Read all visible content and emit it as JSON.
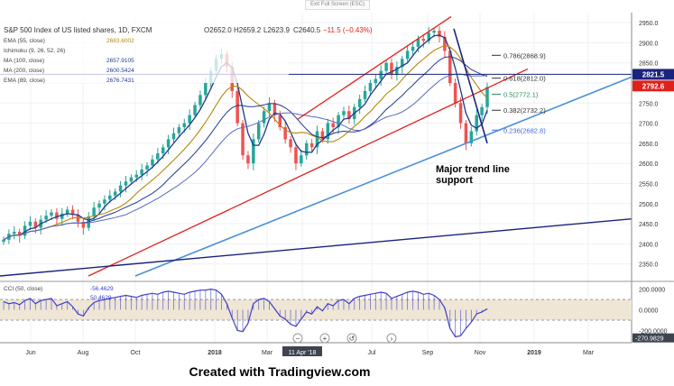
{
  "header": {
    "fullscreen_hint": "Exit Full Screen (ESC)",
    "symbol_title": "S&P 500 Index of US listed shares, 1D, FXCM",
    "ohlc": {
      "open": "O2652.0",
      "high": "H2659.2",
      "low": "L2623.9",
      "close": "C2640.5",
      "change": "−11.5 (−0.43%)"
    }
  },
  "indicators": [
    {
      "label": "EMA (55, close)",
      "value": "2683.6002",
      "color": "#b8860b"
    },
    {
      "label": "Ichimoku (9, 26, 52, 26)",
      "value": "",
      "color": "#aaaaaa"
    },
    {
      "label": "MA (100, close)",
      "value": "2657.9105",
      "color": "#1f3a93"
    },
    {
      "label": "MA (200, close)",
      "value": "2600.5424",
      "color": "#1f3a93"
    },
    {
      "label": "EMA (89, close)",
      "value": "2676.7431",
      "color": "#1f3a93"
    }
  ],
  "price_badges": {
    "level": "2821.5",
    "last": "2792.6"
  },
  "fib_labels": [
    {
      "text": "0.786(2868.9)",
      "y": 2868.9,
      "color": "#333333"
    },
    {
      "text": "0.618(2812.0)",
      "y": 2812.0,
      "color": "#333333"
    },
    {
      "text": "0.5(2772.1)",
      "y": 2772.1,
      "color": "#2e8b57"
    },
    {
      "text": "0.382(2732.2)",
      "y": 2732.2,
      "color": "#333333"
    },
    {
      "text": "0.236(2682.8)",
      "y": 2682.8,
      "color": "#4169e1"
    }
  ],
  "annotation": {
    "line1": "Major trend line",
    "line2": "support"
  },
  "cci_label": "CCI (50, close)",
  "cci_values": {
    "a": "-56.4629",
    "b": "50.4629"
  },
  "cci_axis": [
    "200.0000",
    "0.0000",
    "-200.0000",
    "-270.9829"
  ],
  "price_axis": [
    "2950.0",
    "2900.0",
    "2850.0",
    "2800.0",
    "2750.0",
    "2700.0",
    "2650.0",
    "2600.0",
    "2550.0",
    "2500.0",
    "2450.0",
    "2400.0",
    "2350.0"
  ],
  "time_axis": [
    "Jun",
    "Aug",
    "Oct",
    "2018",
    "Mar",
    "11 Apr '18",
    "Jul",
    "Sep",
    "Nov",
    "2019",
    "Mar"
  ],
  "footer": "Created with Tradingview.com",
  "colors": {
    "bull": "#26a69a",
    "bear": "#ef5350",
    "trend_blue": "#4a90d9",
    "channel_red": "#e0201b",
    "dark_blue": "#1a237e",
    "cci": "#3f3fc8"
  },
  "chart_data": {
    "type": "line",
    "title": "S&P 500 Index of US listed shares, 1D, FXCM",
    "ylim": [
      2320,
      2975
    ],
    "close": [
      2410,
      2425,
      2430,
      2420,
      2445,
      2455,
      2440,
      2460,
      2470,
      2478,
      2462,
      2475,
      2485,
      2472,
      2455,
      2440,
      2468,
      2490,
      2500,
      2510,
      2520,
      2530,
      2545,
      2555,
      2565,
      2572,
      2585,
      2595,
      2610,
      2625,
      2640,
      2660,
      2675,
      2690,
      2700,
      2720,
      2745,
      2770,
      2800,
      2830,
      2860,
      2872,
      2840,
      2780,
      2700,
      2620,
      2600,
      2660,
      2700,
      2730,
      2750,
      2720,
      2690,
      2660,
      2640,
      2600,
      2620,
      2650,
      2640,
      2680,
      2660,
      2700,
      2690,
      2720,
      2730,
      2710,
      2740,
      2760,
      2780,
      2800,
      2810,
      2830,
      2850,
      2820,
      2840,
      2860,
      2880,
      2890,
      2910,
      2905,
      2925,
      2930,
      2915,
      2880,
      2800,
      2750,
      2700,
      2650,
      2680,
      2720,
      2740,
      2790
    ],
    "cci": [
      80,
      60,
      70,
      50,
      90,
      110,
      60,
      90,
      100,
      110,
      40,
      60,
      80,
      30,
      -40,
      -60,
      20,
      70,
      90,
      100,
      110,
      120,
      130,
      140,
      130,
      120,
      140,
      150,
      160,
      150,
      170,
      180,
      170,
      160,
      150,
      170,
      180,
      190,
      190,
      200,
      190,
      150,
      60,
      -80,
      -200,
      -210,
      -130,
      60,
      100,
      110,
      80,
      10,
      -60,
      -90,
      -140,
      -160,
      -90,
      -20,
      -40,
      30,
      -10,
      60,
      40,
      90,
      100,
      60,
      110,
      130,
      140,
      150,
      160,
      170,
      160,
      110,
      130,
      150,
      170,
      180,
      170,
      150,
      160,
      140,
      100,
      20,
      -180,
      -260,
      -250,
      -180,
      -120,
      -40,
      -20,
      10
    ]
  }
}
